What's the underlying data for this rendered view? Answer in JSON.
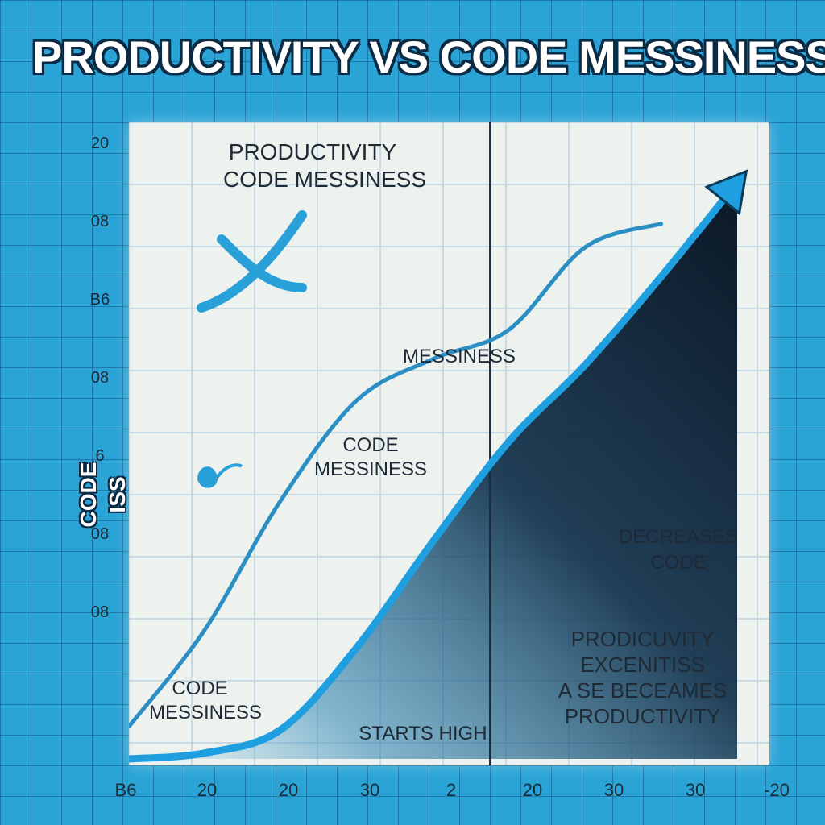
{
  "title": "PRODUCTIVITY VS CODE MESSINESS",
  "ylabel": "CODE ISS",
  "annotations": {
    "legend_line1": "PRODUCTIVITY",
    "legend_line2": "CODE MESSINESS",
    "messiness": "MESSINESS",
    "code_messiness_mid_1": "CODE",
    "code_messiness_mid_2": "MESSINESS",
    "code_messiness_low_1": "CODE",
    "code_messiness_low_2": "MESSINESS",
    "starts_high": "STARTS HIGH",
    "decreases_1": "DECREASES",
    "decreases_2": "CODE",
    "prod_1": "PRODICUVITY",
    "prod_2": "EXCENITISS",
    "prod_3": "A SE BECEAMES",
    "prod_4": "PRODUCTIVITY"
  },
  "colors": {
    "background": "#2aa3d6",
    "panel": "#eef2ee",
    "line_upper": "#2b8fc4",
    "line_lower": "#1f9fe0",
    "fill_dark": "#0e1e2f",
    "text": "#1e2a35"
  },
  "icons": [
    "x-squiggle-icon",
    "leaf-sprout-icon",
    "arrow-head-icon"
  ],
  "chart_data": {
    "type": "line",
    "title": "PRODUCTIVITY VS CODE MESSINESS",
    "ylabel": "CODE ISS",
    "xlabel": "",
    "x_tick_labels": [
      "B6",
      "20",
      "20",
      "30",
      "2",
      "20",
      "30",
      "30",
      "-20"
    ],
    "y_tick_labels": [
      "20",
      "08",
      "B6",
      "08",
      "6",
      "08",
      "08"
    ],
    "legend": "top-left",
    "grid": true,
    "series": [
      {
        "x": [
          0,
          1,
          2,
          3,
          4,
          5,
          6,
          7
        ],
        "values": [
          5.5,
          22,
          44,
          61,
          68,
          73,
          87,
          91
        ]
      },
      {
        "x": [
          0,
          1,
          2,
          3,
          4,
          5,
          6,
          7,
          8
        ],
        "values": [
          0,
          1,
          5,
          19,
          37,
          54,
          67,
          82,
          98
        ],
        "area": true,
        "arrow": true
      }
    ],
    "vertical_line_x": 4.75,
    "xlim": [
      0,
      8
    ],
    "ylim": [
      0,
      100
    ]
  }
}
